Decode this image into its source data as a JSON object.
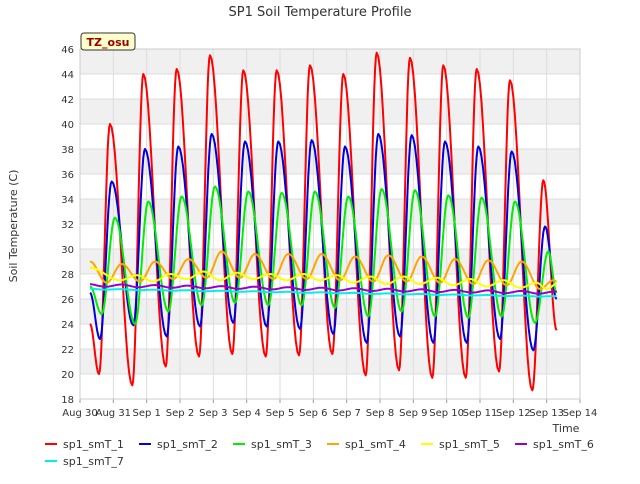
{
  "chart_data": {
    "type": "line",
    "title": "SP1 Soil Temperature Profile",
    "xlabel": "Time",
    "ylabel": "Soil Temperature (C)",
    "ylim": [
      18,
      46
    ],
    "y_ticks": [
      18,
      20,
      22,
      24,
      26,
      28,
      30,
      32,
      34,
      36,
      38,
      40,
      42,
      44,
      46
    ],
    "xlim_days": [
      0,
      15
    ],
    "x_tick_labels": [
      "Aug 30",
      "Aug 31",
      "Sep 1",
      "Sep 2",
      "Sep 3",
      "Sep 4",
      "Sep 5",
      "Sep 6",
      "Sep 7",
      "Sep 8",
      "Sep 9",
      "Sep 10",
      "Sep 11",
      "Sep 12",
      "Sep 13",
      "Sep 14"
    ],
    "grid": true,
    "annotation": "TZ_osu",
    "colors": {
      "sp1_smT_1": "#ff0000",
      "sp1_smT_2": "#0000dd",
      "sp1_smT_3": "#00ee00",
      "sp1_smT_4": "#ffa500",
      "sp1_smT_5": "#ffff00",
      "sp1_smT_6": "#9900cc",
      "sp1_smT_7": "#00eeee"
    },
    "series": [
      {
        "name": "sp1_smT_1",
        "t_start": 0.3,
        "t_end": 14.3,
        "min_days": [
          0.57,
          1.57,
          2.57,
          3.57,
          4.57,
          5.57,
          6.57,
          7.57,
          8.57,
          9.57,
          10.57,
          11.57,
          12.57,
          13.57
        ],
        "max_days": [
          0.9,
          1.9,
          2.9,
          3.9,
          4.9,
          5.9,
          6.9,
          7.9,
          8.9,
          9.9,
          10.9,
          11.9,
          12.9,
          13.9
        ],
        "first_value": 24.0,
        "mins": [
          20.0,
          19.1,
          20.6,
          21.4,
          21.6,
          21.4,
          21.5,
          21.6,
          19.9,
          20.3,
          19.7,
          19.7,
          20.2,
          18.7
        ],
        "maxs": [
          40.0,
          44.0,
          44.4,
          45.5,
          44.3,
          44.3,
          44.7,
          44.0,
          45.7,
          45.3,
          44.7,
          44.4,
          43.5,
          35.5
        ],
        "last_value": 23.5
      },
      {
        "name": "sp1_smT_2",
        "t_start": 0.3,
        "t_end": 14.3,
        "min_days": [
          0.6,
          1.6,
          2.6,
          3.6,
          4.6,
          5.6,
          6.6,
          7.6,
          8.6,
          9.6,
          10.6,
          11.6,
          12.6,
          13.6
        ],
        "max_days": [
          0.95,
          1.95,
          2.95,
          3.95,
          4.95,
          5.95,
          6.95,
          7.95,
          8.95,
          9.95,
          10.95,
          11.95,
          12.95,
          13.95
        ],
        "first_value": 26.5,
        "mins": [
          22.8,
          23.9,
          23.0,
          23.8,
          24.1,
          23.8,
          23.6,
          23.2,
          22.5,
          23.0,
          22.5,
          22.5,
          22.8,
          21.9
        ],
        "maxs": [
          35.4,
          38.0,
          38.2,
          39.2,
          38.6,
          38.6,
          38.7,
          38.2,
          39.2,
          39.1,
          38.6,
          38.2,
          37.8,
          31.8
        ],
        "last_value": 26.0
      },
      {
        "name": "sp1_smT_3",
        "t_start": 0.3,
        "t_end": 14.3,
        "min_days": [
          0.65,
          1.65,
          2.65,
          3.65,
          4.65,
          5.65,
          6.65,
          7.65,
          8.65,
          9.65,
          10.65,
          11.65,
          12.65,
          13.65
        ],
        "max_days": [
          1.05,
          2.05,
          3.05,
          4.05,
          5.05,
          6.05,
          7.05,
          8.05,
          9.05,
          10.05,
          11.05,
          12.05,
          13.05,
          14.05
        ],
        "first_value": 27.0,
        "mins": [
          24.8,
          24.0,
          25.0,
          25.5,
          25.7,
          25.5,
          25.5,
          25.3,
          24.6,
          25.0,
          24.6,
          24.5,
          24.6,
          24.1
        ],
        "maxs": [
          32.5,
          33.8,
          34.2,
          35.0,
          34.6,
          34.5,
          34.6,
          34.2,
          34.8,
          34.7,
          34.3,
          34.1,
          33.8,
          29.8
        ],
        "last_value": 26.5
      },
      {
        "name": "sp1_smT_4",
        "t_start": 0.3,
        "t_end": 14.3,
        "min_days": [
          0.8,
          1.8,
          2.8,
          3.8,
          4.8,
          5.8,
          6.8,
          7.8,
          8.8,
          9.8,
          10.8,
          11.8,
          12.8,
          13.8
        ],
        "max_days": [
          1.25,
          2.25,
          3.25,
          4.25,
          5.25,
          6.25,
          7.25,
          8.25,
          9.25,
          10.25,
          11.25,
          12.25,
          13.25,
          14.2
        ],
        "first_value": 29.0,
        "mins": [
          27.3,
          27.4,
          27.6,
          27.7,
          27.7,
          27.6,
          27.6,
          27.5,
          27.4,
          27.4,
          27.3,
          27.2,
          27.1,
          26.8
        ],
        "maxs": [
          28.8,
          29.0,
          29.2,
          29.8,
          29.6,
          29.6,
          29.6,
          29.4,
          29.5,
          29.4,
          29.2,
          29.1,
          29.0,
          27.5
        ],
        "last_value": 27.4
      },
      {
        "name": "sp1_smT_5",
        "t_start": 0.3,
        "t_end": 14.3,
        "min_days": [
          1.2,
          2.2,
          3.2,
          4.2,
          5.2,
          6.2,
          7.2,
          8.2,
          9.2,
          10.2,
          11.2,
          12.2,
          13.2,
          14.0
        ],
        "max_days": [
          0.3,
          1.7,
          2.7,
          3.7,
          4.7,
          5.7,
          6.7,
          7.7,
          8.7,
          9.7,
          10.7,
          11.7,
          12.7,
          13.7
        ],
        "first_value": 28.5,
        "mins": [
          27.5,
          27.4,
          27.6,
          27.5,
          27.6,
          27.5,
          27.5,
          27.3,
          27.2,
          27.2,
          27.1,
          27.0,
          26.9,
          26.8
        ],
        "maxs": [
          28.6,
          27.9,
          28.0,
          28.2,
          28.1,
          28.0,
          28.0,
          27.9,
          27.8,
          27.8,
          27.7,
          27.6,
          27.5,
          27.3
        ],
        "last_value": 27.2
      },
      {
        "name": "sp1_smT_6",
        "t_start": 0.3,
        "t_end": 14.3,
        "start_value": 27.1,
        "end_value": 26.5,
        "wobble": 0.1
      },
      {
        "name": "sp1_smT_7",
        "t_start": 0.3,
        "t_end": 14.3,
        "start_value": 26.8,
        "end_value": 26.2,
        "wobble": 0.03
      }
    ]
  }
}
